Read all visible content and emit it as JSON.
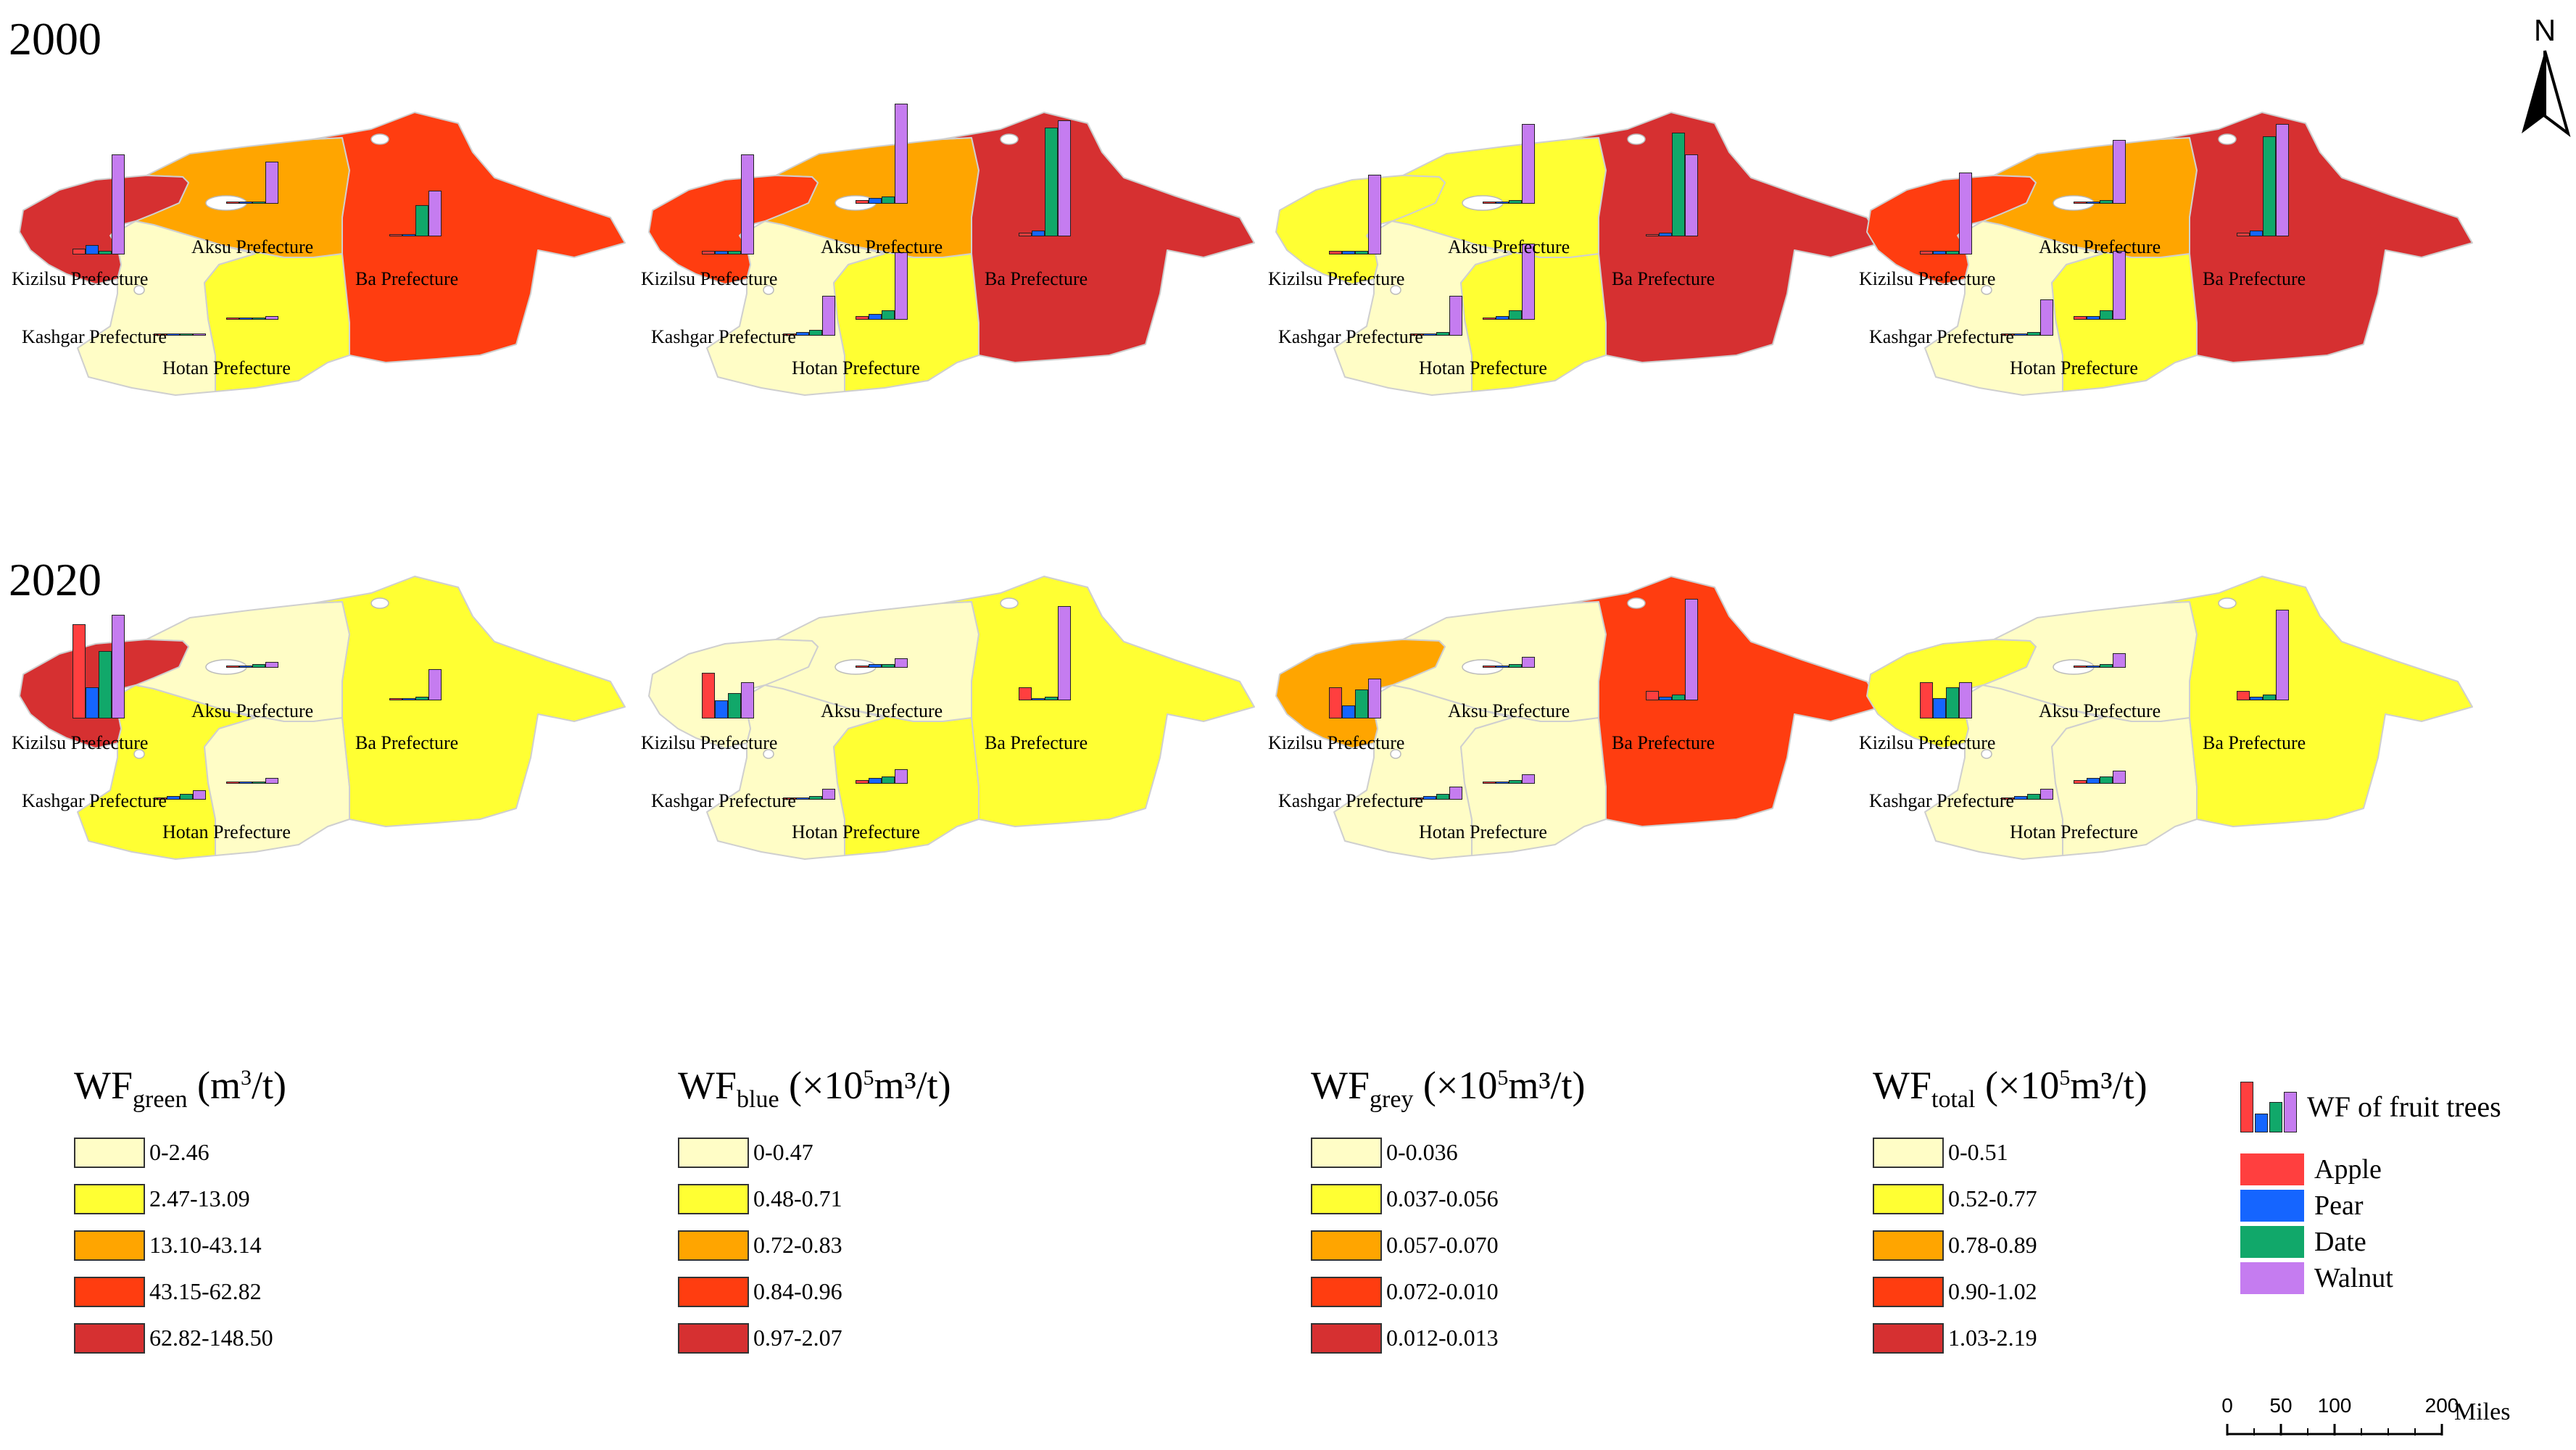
{
  "rows": [
    {
      "year": "2000"
    },
    {
      "year": "2020"
    }
  ],
  "colors": {
    "class1": "#fffdc6",
    "class2": "#ffff33",
    "class3": "#ffa500",
    "class4": "#ff3d10",
    "class5": "#d63031",
    "apple": "#ff3f3f",
    "pear": "#1565ff",
    "date": "#11a86a",
    "walnut": "#c57cf0"
  },
  "prefecture_names": {
    "kizilsu": "Kizilsu Prefecture",
    "aksu": "Aksu Prefecture",
    "ba": "Ba Prefecture",
    "kashgar": "Kashgar Prefecture",
    "hotan": "Hotan Prefecture"
  },
  "panels": [
    {
      "row": 0,
      "col": 0,
      "indicator": "green",
      "classes": {
        "kizilsu": 5,
        "aksu": 3,
        "ba": 4,
        "kashgar": 1,
        "hotan": 2
      },
      "bars": {
        "kizilsu": [
          0.03,
          0.05,
          0.02,
          0.55
        ],
        "aksu": [
          0.01,
          0.01,
          0.01,
          0.23
        ],
        "ba": [
          0.01,
          0.01,
          0.17,
          0.25
        ],
        "kashgar": [
          0,
          0,
          0,
          0
        ],
        "hotan": [
          0.01,
          0.01,
          0.01,
          0.02
        ]
      }
    },
    {
      "row": 0,
      "col": 1,
      "indicator": "blue",
      "classes": {
        "kizilsu": 4,
        "aksu": 3,
        "ba": 5,
        "kashgar": 1,
        "hotan": 2
      },
      "bars": {
        "kizilsu": [
          0.02,
          0.02,
          0.02,
          0.55
        ],
        "aksu": [
          0.02,
          0.03,
          0.04,
          0.55
        ],
        "ba": [
          0.02,
          0.03,
          0.6,
          0.64
        ],
        "kashgar": [
          0.01,
          0.02,
          0.03,
          0.22
        ],
        "hotan": [
          0.02,
          0.03,
          0.05,
          0.37
        ]
      }
    },
    {
      "row": 0,
      "col": 2,
      "indicator": "grey",
      "classes": {
        "kizilsu": 2,
        "aksu": 2,
        "ba": 5,
        "kashgar": 1,
        "hotan": 2
      },
      "bars": {
        "kizilsu": [
          0.02,
          0.02,
          0.02,
          0.44
        ],
        "aksu": [
          0.01,
          0.01,
          0.02,
          0.44
        ],
        "ba": [
          0.01,
          0.02,
          0.57,
          0.45
        ],
        "kashgar": [
          0.01,
          0.01,
          0.02,
          0.22
        ],
        "hotan": [
          0.01,
          0.02,
          0.05,
          0.42
        ]
      }
    },
    {
      "row": 0,
      "col": 3,
      "indicator": "total",
      "classes": {
        "kizilsu": 4,
        "aksu": 3,
        "ba": 5,
        "kashgar": 1,
        "hotan": 2
      },
      "bars": {
        "kizilsu": [
          0.02,
          0.02,
          0.02,
          0.45
        ],
        "aksu": [
          0.01,
          0.01,
          0.02,
          0.35
        ],
        "ba": [
          0.02,
          0.03,
          0.55,
          0.62
        ],
        "kashgar": [
          0.01,
          0.01,
          0.02,
          0.2
        ],
        "hotan": [
          0.02,
          0.02,
          0.05,
          0.38
        ]
      }
    },
    {
      "row": 1,
      "col": 0,
      "indicator": "green",
      "classes": {
        "kizilsu": 5,
        "aksu": 1,
        "ba": 2,
        "kashgar": 2,
        "hotan": 1
      },
      "bars": {
        "kizilsu": [
          0.52,
          0.17,
          0.37,
          0.57
        ],
        "aksu": [
          0.01,
          0.01,
          0.02,
          0.03
        ],
        "ba": [
          0.01,
          0.01,
          0.02,
          0.17
        ],
        "kashgar": [
          0.01,
          0.02,
          0.03,
          0.05
        ],
        "hotan": [
          0.01,
          0.01,
          0.01,
          0.03
        ]
      }
    },
    {
      "row": 1,
      "col": 1,
      "indicator": "blue",
      "classes": {
        "kizilsu": 1,
        "aksu": 1,
        "ba": 2,
        "kashgar": 1,
        "hotan": 2
      },
      "bars": {
        "kizilsu": [
          0.25,
          0.1,
          0.14,
          0.2
        ],
        "aksu": [
          0.01,
          0.02,
          0.02,
          0.05
        ],
        "ba": [
          0.07,
          0.01,
          0.02,
          0.52
        ],
        "kashgar": [
          0.01,
          0.01,
          0.02,
          0.06
        ],
        "hotan": [
          0.02,
          0.03,
          0.04,
          0.08
        ]
      }
    },
    {
      "row": 1,
      "col": 2,
      "indicator": "grey",
      "classes": {
        "kizilsu": 3,
        "aksu": 1,
        "ba": 4,
        "kashgar": 1,
        "hotan": 1
      },
      "bars": {
        "kizilsu": [
          0.17,
          0.07,
          0.16,
          0.22
        ],
        "aksu": [
          0.01,
          0.01,
          0.02,
          0.06
        ],
        "ba": [
          0.05,
          0.02,
          0.03,
          0.56
        ],
        "kashgar": [
          0.01,
          0.02,
          0.03,
          0.07
        ],
        "hotan": [
          0.01,
          0.01,
          0.02,
          0.05
        ]
      }
    },
    {
      "row": 1,
      "col": 3,
      "indicator": "total",
      "classes": {
        "kizilsu": 2,
        "aksu": 1,
        "ba": 2,
        "kashgar": 1,
        "hotan": 1
      },
      "bars": {
        "kizilsu": [
          0.2,
          0.11,
          0.17,
          0.2
        ],
        "aksu": [
          0.01,
          0.01,
          0.02,
          0.08
        ],
        "ba": [
          0.05,
          0.02,
          0.03,
          0.5
        ],
        "kashgar": [
          0.01,
          0.02,
          0.03,
          0.06
        ],
        "hotan": [
          0.02,
          0.03,
          0.04,
          0.07
        ]
      }
    }
  ],
  "legends": [
    {
      "indicator": "green",
      "title_main": "WF",
      "title_sub": "green",
      "title_pre": " (m",
      "title_sup": "3",
      "title_post": "/t)",
      "ranges": [
        "0-2.46",
        "2.47-13.09",
        "13.10-43.14",
        "43.15-62.82",
        "62.82-148.50"
      ]
    },
    {
      "indicator": "blue",
      "title_main": "WF",
      "title_sub": "blue",
      "title_pre": " (×10",
      "title_sup": "5",
      "title_post": "m³/t)",
      "ranges": [
        "0-0.47",
        "0.48-0.71",
        "0.72-0.83",
        "0.84-0.96",
        "0.97-2.07"
      ]
    },
    {
      "indicator": "grey",
      "title_main": "WF",
      "title_sub": "grey",
      "title_pre": " (×10",
      "title_sup": "5",
      "title_post": "m³/t)",
      "ranges": [
        "0-0.036",
        "0.037-0.056",
        "0.057-0.070",
        "0.072-0.010",
        "0.012-0.013"
      ]
    },
    {
      "indicator": "total",
      "title_main": "WF",
      "title_sub": "total",
      "title_pre": " (×10",
      "title_sup": "5",
      "title_post": "m³/t)",
      "ranges": [
        "0-0.51",
        "0.52-0.77",
        "0.78-0.89",
        "0.90-1.02",
        "1.03-2.19"
      ]
    }
  ],
  "fruit_legend": {
    "title": "WF of fruit trees",
    "items": [
      {
        "name": "Apple",
        "color_key": "apple"
      },
      {
        "name": "Pear",
        "color_key": "pear"
      },
      {
        "name": "Date",
        "color_key": "date"
      },
      {
        "name": "Walnut",
        "color_key": "walnut"
      }
    ]
  },
  "north_label": "N",
  "scale_bar": {
    "ticks": [
      "0",
      "50",
      "100",
      "200"
    ],
    "unit": "Miles"
  }
}
